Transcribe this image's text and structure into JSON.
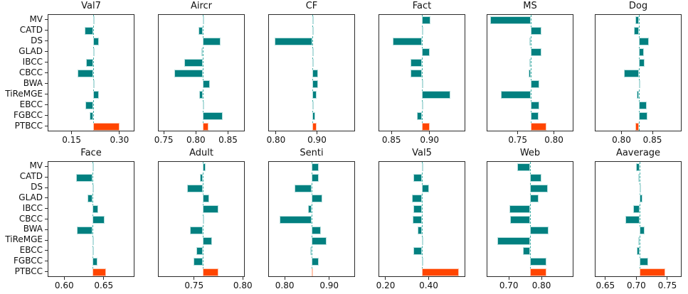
{
  "figure": {
    "kind": "small-multiples horizontal diverging bar charts",
    "highlight_method": "PTBCC",
    "colors": {
      "bar_teal": "#028080",
      "bar_orange": "#ff4500",
      "bar_edge": "#b5dedd",
      "baseline_dash": "#3faea6",
      "axis_spine": "#2b2b2b",
      "text": "#111111",
      "background": "#ffffff"
    }
  },
  "chart_data": {
    "type": "bar",
    "orientation": "horizontal",
    "grid": false,
    "legend": "none",
    "methods": [
      "MV",
      "CATD",
      "DS",
      "GLAD",
      "IBCC",
      "CBCC",
      "BWA",
      "TiReMGE",
      "EBCC",
      "FGBCC",
      "PTBCC"
    ],
    "note": "Each panel: bars start at the dashed baseline value and extend to each method's value; PTBCC drawn in orange, all others teal.",
    "panels": [
      {
        "title": "Val7",
        "xlim": [
          0.075,
          0.347
        ],
        "ticks": [
          0.15,
          0.3
        ],
        "baseline": 0.217,
        "values": [
          0.222,
          0.19,
          0.237,
          0.217,
          0.195,
          0.168,
          0.218,
          0.235,
          0.193,
          0.207,
          0.302
        ]
      },
      {
        "title": "Aircr",
        "xlim": [
          0.741,
          0.876
        ],
        "ticks": [
          0.75,
          0.8,
          0.85
        ],
        "baseline": 0.811,
        "values": [
          0.811,
          0.804,
          0.839,
          0.808,
          0.781,
          0.766,
          0.822,
          0.805,
          0.813,
          0.842,
          0.82
        ]
      },
      {
        "title": "CF",
        "xlim": [
          0.781,
          0.993
        ],
        "ticks": [
          0.8,
          0.9
        ],
        "baseline": 0.888,
        "values": [
          0.891,
          0.888,
          0.795,
          0.888,
          0.891,
          0.903,
          0.903,
          0.9,
          0.89,
          0.896,
          0.899
        ]
      },
      {
        "title": "Fact",
        "xlim": [
          0.833,
          0.947
        ],
        "ticks": [
          0.85,
          0.9
        ],
        "baseline": 0.89,
        "values": [
          0.901,
          0.89,
          0.851,
          0.9,
          0.875,
          0.875,
          0.89,
          0.928,
          0.89,
          0.883,
          0.9
        ]
      },
      {
        "title": "MS",
        "xlim": [
          0.707,
          0.827
        ],
        "ticks": [
          0.75,
          0.8
        ],
        "baseline": 0.768,
        "values": [
          0.711,
          0.783,
          0.766,
          0.783,
          0.766,
          0.765,
          0.78,
          0.726,
          0.78,
          0.779,
          0.79
        ]
      },
      {
        "title": "Dog",
        "xlim": [
          0.757,
          0.897
        ],
        "ticks": [
          0.8,
          0.85
        ],
        "baseline": 0.828,
        "values": [
          0.822,
          0.82,
          0.845,
          0.836,
          0.838,
          0.804,
          0.828,
          0.825,
          0.841,
          0.842,
          0.822
        ]
      },
      {
        "title": "Face",
        "xlim": [
          0.579,
          0.689
        ],
        "ticks": [
          0.6,
          0.65
        ],
        "baseline": 0.636,
        "values": [
          0.636,
          0.615,
          0.637,
          0.629,
          0.643,
          0.651,
          0.616,
          0.637,
          0.636,
          0.642,
          0.653
        ]
      },
      {
        "title": "Adult",
        "xlim": [
          0.713,
          0.802
        ],
        "ticks": [
          0.75,
          0.8
        ],
        "baseline": 0.759,
        "values": [
          0.762,
          0.756,
          0.743,
          0.766,
          0.775,
          0.759,
          0.746,
          0.769,
          0.752,
          0.749,
          0.775
        ]
      },
      {
        "title": "Senti",
        "xlim": [
          0.763,
          0.958
        ],
        "ticks": [
          0.8,
          0.9
        ],
        "baseline": 0.861,
        "values": [
          0.876,
          0.876,
          0.821,
          0.885,
          0.853,
          0.787,
          0.881,
          0.894,
          0.857,
          0.876,
          0.862
        ]
      },
      {
        "title": "Val5",
        "xlim": [
          0.167,
          0.57
        ],
        "ticks": [
          0.2,
          0.4
        ],
        "baseline": 0.367,
        "values": [
          0.368,
          0.327,
          0.403,
          0.32,
          0.327,
          0.325,
          0.347,
          0.367,
          0.327,
          0.372,
          0.543
        ]
      },
      {
        "title": "Web",
        "xlim": [
          0.632,
          0.898
        ],
        "ticks": [
          0.7,
          0.8
        ],
        "baseline": 0.766,
        "values": [
          0.726,
          0.8,
          0.82,
          0.792,
          0.7,
          0.703,
          0.823,
          0.662,
          0.743,
          0.817,
          0.817
        ]
      },
      {
        "title": "Aaverage",
        "xlim": [
          0.633,
          0.773
        ],
        "ticks": [
          0.65,
          0.7,
          0.75
        ],
        "baseline": 0.705,
        "values": [
          0.7,
          0.703,
          0.706,
          0.71,
          0.695,
          0.682,
          0.713,
          0.703,
          0.701,
          0.719,
          0.747
        ]
      }
    ]
  }
}
